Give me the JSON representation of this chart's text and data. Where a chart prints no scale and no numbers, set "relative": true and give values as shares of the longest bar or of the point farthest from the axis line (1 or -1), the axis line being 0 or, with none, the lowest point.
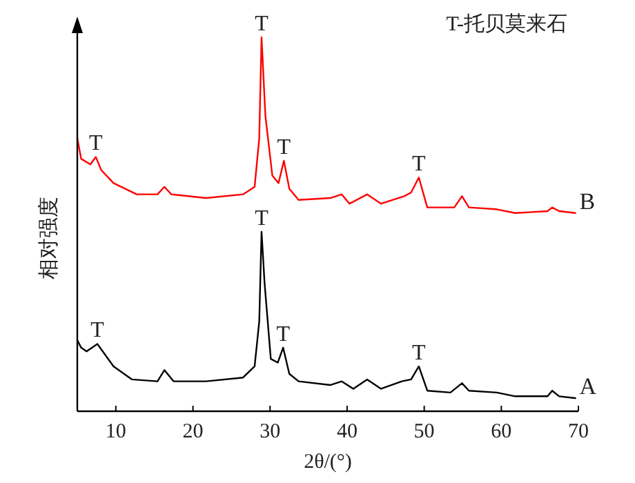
{
  "chart_data": {
    "type": "line",
    "relative": true,
    "xlabel": "2θ/(°)",
    "ylabel": "相对强度",
    "xlim": [
      5,
      70
    ],
    "xticks": [
      10,
      20,
      30,
      40,
      50,
      60,
      70
    ],
    "grid": false,
    "line_style": "solid",
    "annotations": [
      "T-托贝莫来石",
      {
        "text": "T",
        "x": 7.4,
        "y": 0.68
      },
      {
        "text": "T",
        "x": 28.9,
        "y": 1.0
      },
      {
        "text": "T",
        "x": 31.8,
        "y": 0.67
      },
      {
        "text": "T",
        "x": 49.3,
        "y": 0.625
      },
      {
        "text": "T",
        "x": 7.6,
        "y": 0.18
      },
      {
        "text": "T",
        "x": 28.9,
        "y": 0.48
      },
      {
        "text": "T",
        "x": 31.7,
        "y": 0.17
      },
      {
        "text": "T",
        "x": 49.3,
        "y": 0.12
      }
    ],
    "series": [
      {
        "name": "B",
        "color": "#ff0000",
        "x": [
          5.0,
          5.5,
          6.7,
          7.4,
          8.1,
          9.7,
          12.7,
          15.4,
          16.3,
          17.2,
          21.7,
          26.5,
          28.0,
          28.6,
          28.9,
          29.4,
          30.3,
          31.1,
          31.8,
          32.5,
          33.7,
          37.8,
          39.3,
          40.3,
          42.6,
          44.4,
          47.4,
          48.3,
          49.3,
          50.4,
          53.9,
          54.9,
          55.8,
          59.4,
          61.8,
          66.0,
          66.6,
          67.5,
          69.6
        ],
        "values": [
          0.73,
          0.675,
          0.66,
          0.68,
          0.645,
          0.61,
          0.58,
          0.58,
          0.6,
          0.58,
          0.57,
          0.58,
          0.6,
          0.73,
          1.0,
          0.79,
          0.63,
          0.61,
          0.67,
          0.595,
          0.565,
          0.57,
          0.58,
          0.555,
          0.58,
          0.555,
          0.575,
          0.585,
          0.625,
          0.545,
          0.545,
          0.575,
          0.545,
          0.54,
          0.53,
          0.535,
          0.545,
          0.535,
          0.53
        ]
      },
      {
        "name": "A",
        "color": "#000000",
        "x": [
          5.0,
          5.5,
          6.2,
          7.6,
          9.7,
          12.1,
          15.4,
          16.3,
          17.5,
          21.7,
          26.5,
          28.0,
          28.6,
          28.9,
          29.3,
          30.1,
          31.0,
          31.7,
          32.5,
          33.7,
          37.8,
          39.3,
          40.8,
          42.6,
          44.4,
          47.1,
          48.3,
          49.3,
          50.4,
          53.4,
          54.9,
          55.8,
          59.4,
          61.8,
          66.0,
          66.6,
          67.5,
          69.6
        ],
        "values": [
          0.19,
          0.17,
          0.16,
          0.18,
          0.12,
          0.085,
          0.08,
          0.11,
          0.08,
          0.08,
          0.09,
          0.12,
          0.24,
          0.48,
          0.34,
          0.14,
          0.13,
          0.17,
          0.1,
          0.08,
          0.07,
          0.08,
          0.06,
          0.085,
          0.06,
          0.08,
          0.085,
          0.12,
          0.055,
          0.05,
          0.075,
          0.055,
          0.05,
          0.04,
          0.04,
          0.055,
          0.04,
          0.035
        ]
      }
    ]
  }
}
